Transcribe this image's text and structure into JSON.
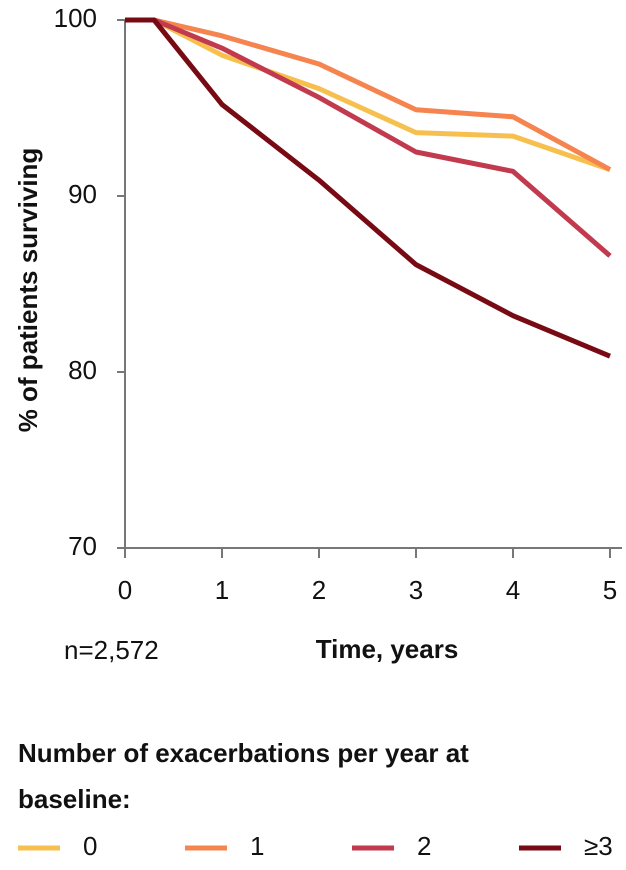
{
  "chart_data": {
    "type": "line",
    "y_label": "% of patients surviving",
    "x_label": "Time, years",
    "annotation": "n=2,572",
    "legend_title": "Number of exacerbations per year at baseline:",
    "x": [
      0,
      0.3,
      1,
      2,
      3,
      4,
      5
    ],
    "xlim": [
      0,
      5
    ],
    "xticks": [
      0,
      1,
      2,
      3,
      4,
      5
    ],
    "ylim": [
      70,
      100
    ],
    "yticks": [
      70,
      80,
      90,
      100
    ],
    "series": [
      {
        "name": "0",
        "color": "#f7c04e",
        "values": [
          100,
          100,
          98.0,
          96.1,
          93.6,
          93.4,
          91.5
        ]
      },
      {
        "name": "1",
        "color": "#f5844e",
        "values": [
          100,
          100,
          99.1,
          97.5,
          94.9,
          94.5,
          91.5
        ]
      },
      {
        "name": "2",
        "color": "#c13a4d",
        "values": [
          100,
          100,
          98.4,
          95.6,
          92.5,
          91.4,
          86.6
        ]
      },
      {
        "name": "≥3",
        "color": "#780a14",
        "values": [
          100,
          100,
          95.2,
          90.9,
          86.1,
          83.2,
          80.9
        ]
      }
    ]
  }
}
